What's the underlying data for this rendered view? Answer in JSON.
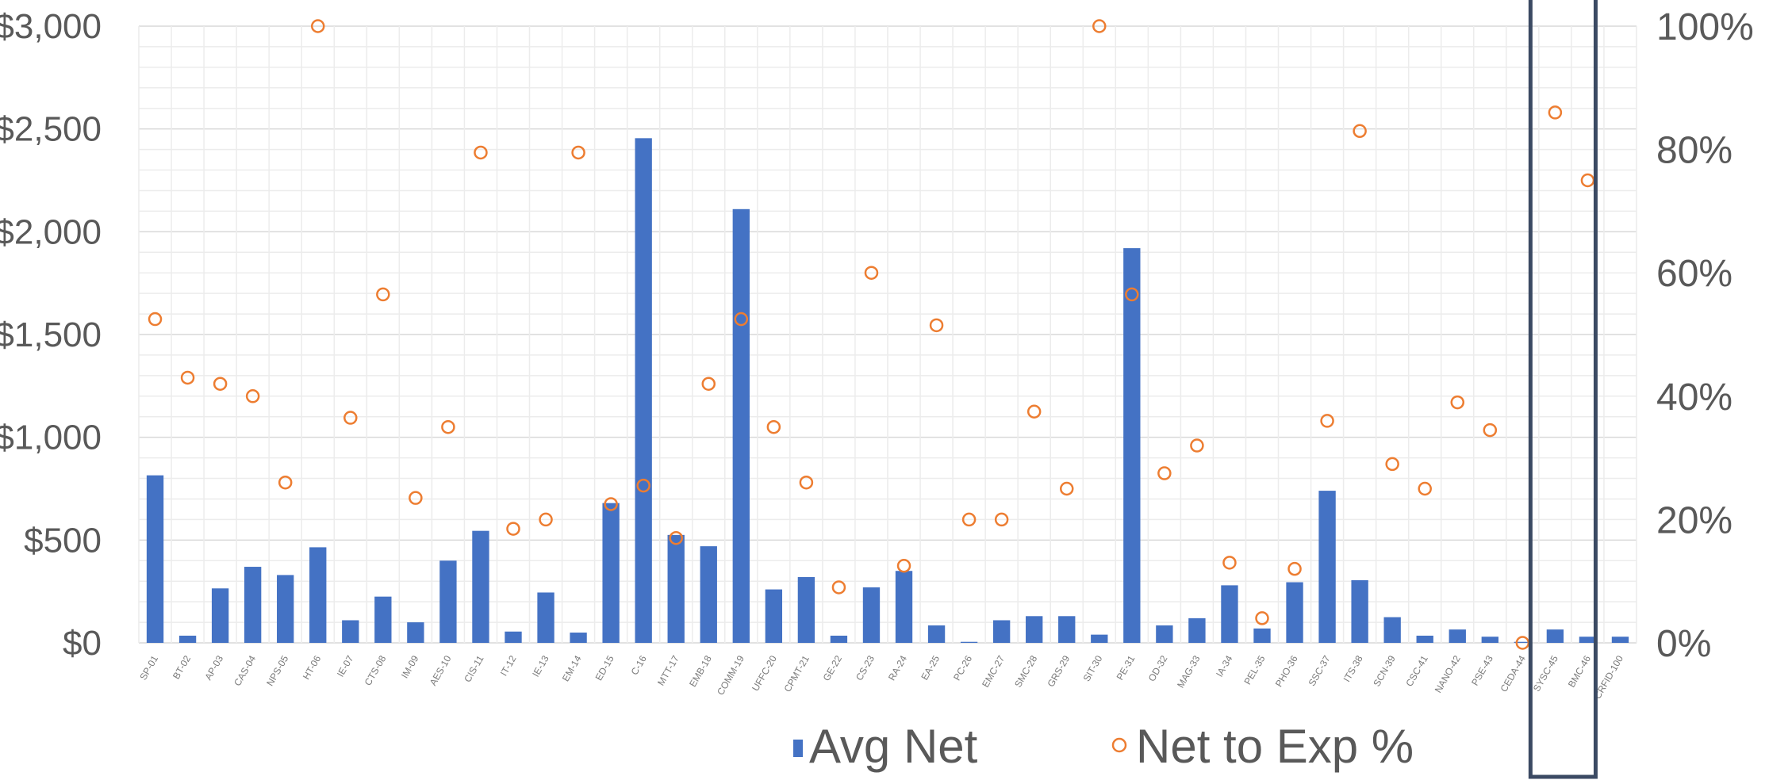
{
  "chart_data": {
    "type": "bar",
    "categories": [
      "SP-01",
      "BT-02",
      "AP-03",
      "CAS-04",
      "NPS-05",
      "HT-06",
      "IE-07",
      "CTS-08",
      "IM-09",
      "AES-10",
      "CIS-11",
      "IT-12",
      "IE-13",
      "EM-14",
      "ED-15",
      "C-16",
      "MTT-17",
      "EMB-18",
      "COMM-19",
      "UFFC-20",
      "CPMT-21",
      "GE-22",
      "CS-23",
      "RA-24",
      "EA-25",
      "PC-26",
      "EMC-27",
      "SMC-28",
      "GRS-29",
      "SIT-30",
      "PE-31",
      "OD-32",
      "MAG-33",
      "IA-34",
      "PEL-35",
      "PHO-36",
      "SSC-37",
      "ITS-38",
      "SCN-39",
      "CSC-41",
      "NANO-42",
      "PSE-43",
      "CEDA-44",
      "SYSC-45",
      "BMC-46",
      "CRFID-100"
    ],
    "series": [
      {
        "name": "Avg Net",
        "type": "bar",
        "axis": "left",
        "color": "#4472c4",
        "values": [
          815,
          35,
          265,
          370,
          330,
          465,
          110,
          225,
          100,
          400,
          545,
          55,
          245,
          50,
          680,
          2455,
          525,
          470,
          2110,
          260,
          320,
          35,
          270,
          350,
          85,
          5,
          110,
          130,
          130,
          40,
          1920,
          85,
          120,
          280,
          70,
          295,
          740,
          305,
          125,
          35,
          65,
          30,
          5,
          65,
          30,
          30
        ]
      },
      {
        "name": "Net to Exp %",
        "type": "scatter",
        "axis": "right",
        "color": "#ed7d31",
        "values": [
          52.5,
          43,
          42,
          40,
          26,
          100,
          36.5,
          56.5,
          23.5,
          35,
          79.5,
          18.5,
          20,
          79.5,
          22.5,
          25.5,
          17,
          42,
          52.5,
          35,
          26,
          9,
          60,
          12.5,
          51.5,
          20,
          20,
          37.5,
          25,
          100,
          56.5,
          27.5,
          32,
          13,
          4,
          12,
          36,
          83,
          29,
          25,
          39,
          34.5,
          0,
          86,
          75,
          null
        ]
      }
    ],
    "y_left": {
      "min": 0,
      "max": 3000,
      "ticks": [
        "$0",
        "$500",
        "$1,000",
        "$1,500",
        "$2,000",
        "$2,500",
        "$3,000"
      ]
    },
    "y_right": {
      "min": 0,
      "max": 100,
      "ticks": [
        "0%",
        "20%",
        "40%",
        "60%",
        "80%",
        "100%"
      ]
    },
    "grid": true,
    "legend": {
      "position": "bottom",
      "items": [
        "Avg Net",
        "Net to Exp %"
      ]
    },
    "highlight_box": {
      "from_category": "CEDA-44",
      "to_category": "BMC-46",
      "color": "#3b4a63"
    }
  }
}
